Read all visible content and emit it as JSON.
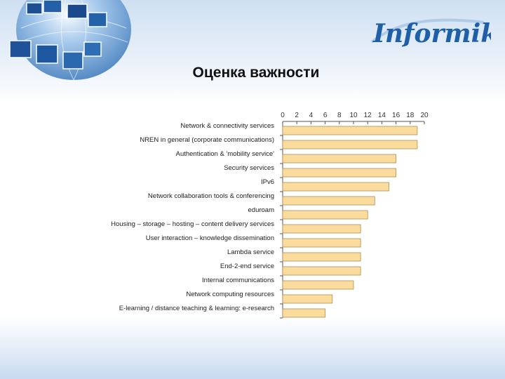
{
  "slide": {
    "title": "Оценка важности",
    "logo_text": "Informika"
  },
  "colors": {
    "bar_fill": "#f9dc9e",
    "bar_stroke": "#b38f4a",
    "axis": "#555555",
    "logo_blue": "#1f5fa8"
  },
  "chart_data": {
    "type": "bar",
    "orientation": "horizontal",
    "title": "",
    "xlabel": "",
    "ylabel": "",
    "xlim": [
      0,
      20
    ],
    "xticks": [
      0,
      2,
      4,
      6,
      8,
      10,
      12,
      14,
      16,
      18,
      20
    ],
    "x_axis_position": "top",
    "grid": false,
    "categories": [
      "Network & connectivity services",
      "NREN in general (corporate communications)",
      "Authentication & 'mobility service'",
      "Security services",
      "IPv6",
      "Network collaboration tools & conferencing",
      "eduroam",
      "Housing – storage – hosting – content delivery services",
      "User interaction – knowledge dissemination",
      "Lambda service",
      "End-2-end service",
      "Internal communications",
      "Network computing resources",
      "E-learning / distance teaching & learning: e-research"
    ],
    "values": [
      19,
      19,
      16,
      16,
      15,
      13,
      12,
      11,
      11,
      11,
      11,
      10,
      7,
      6
    ]
  }
}
